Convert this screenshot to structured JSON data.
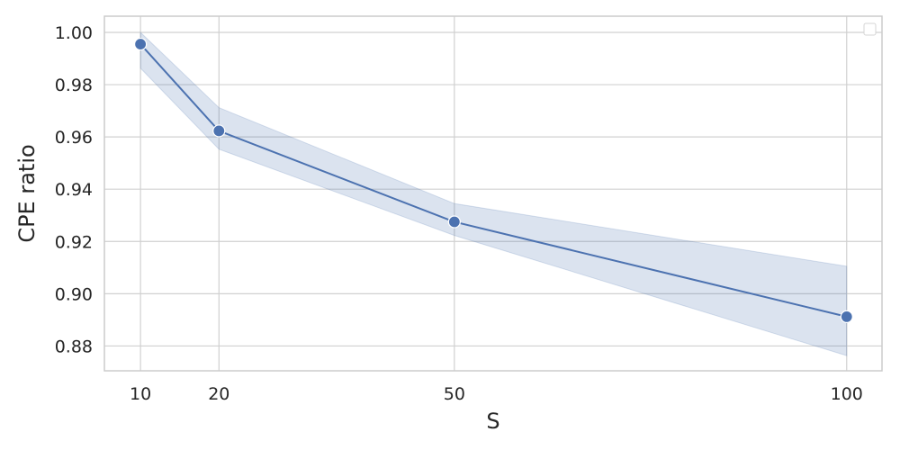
{
  "chart_data": {
    "type": "line",
    "title": "",
    "xlabel": "S",
    "ylabel": "CPE ratio",
    "x": [
      10,
      20,
      50,
      100
    ],
    "x_ticks": [
      10,
      20,
      50,
      100
    ],
    "y_ticks": [
      "0.88",
      "0.90",
      "0.92",
      "0.94",
      "0.96",
      "0.98",
      "1.00"
    ],
    "xlim": [
      5.4,
      104.5
    ],
    "ylim": [
      0.8705,
      1.0062
    ],
    "grid": true,
    "legend": "top-right, empty",
    "series": [
      {
        "values": [
          0.9955,
          0.9623,
          0.9275,
          0.8912
        ],
        "ci_upper": [
          1.0,
          0.9712,
          0.9345,
          0.9105
        ],
        "ci_lower": [
          0.9863,
          0.9553,
          0.9223,
          0.8763
        ],
        "color": "#4c72b0",
        "band_color": "#4c72b0",
        "marker": "circle"
      }
    ],
    "colors": {
      "grid": "#d0d0d0",
      "spine": "#cccccc",
      "background": "#ffffff",
      "text": "#262626"
    }
  }
}
